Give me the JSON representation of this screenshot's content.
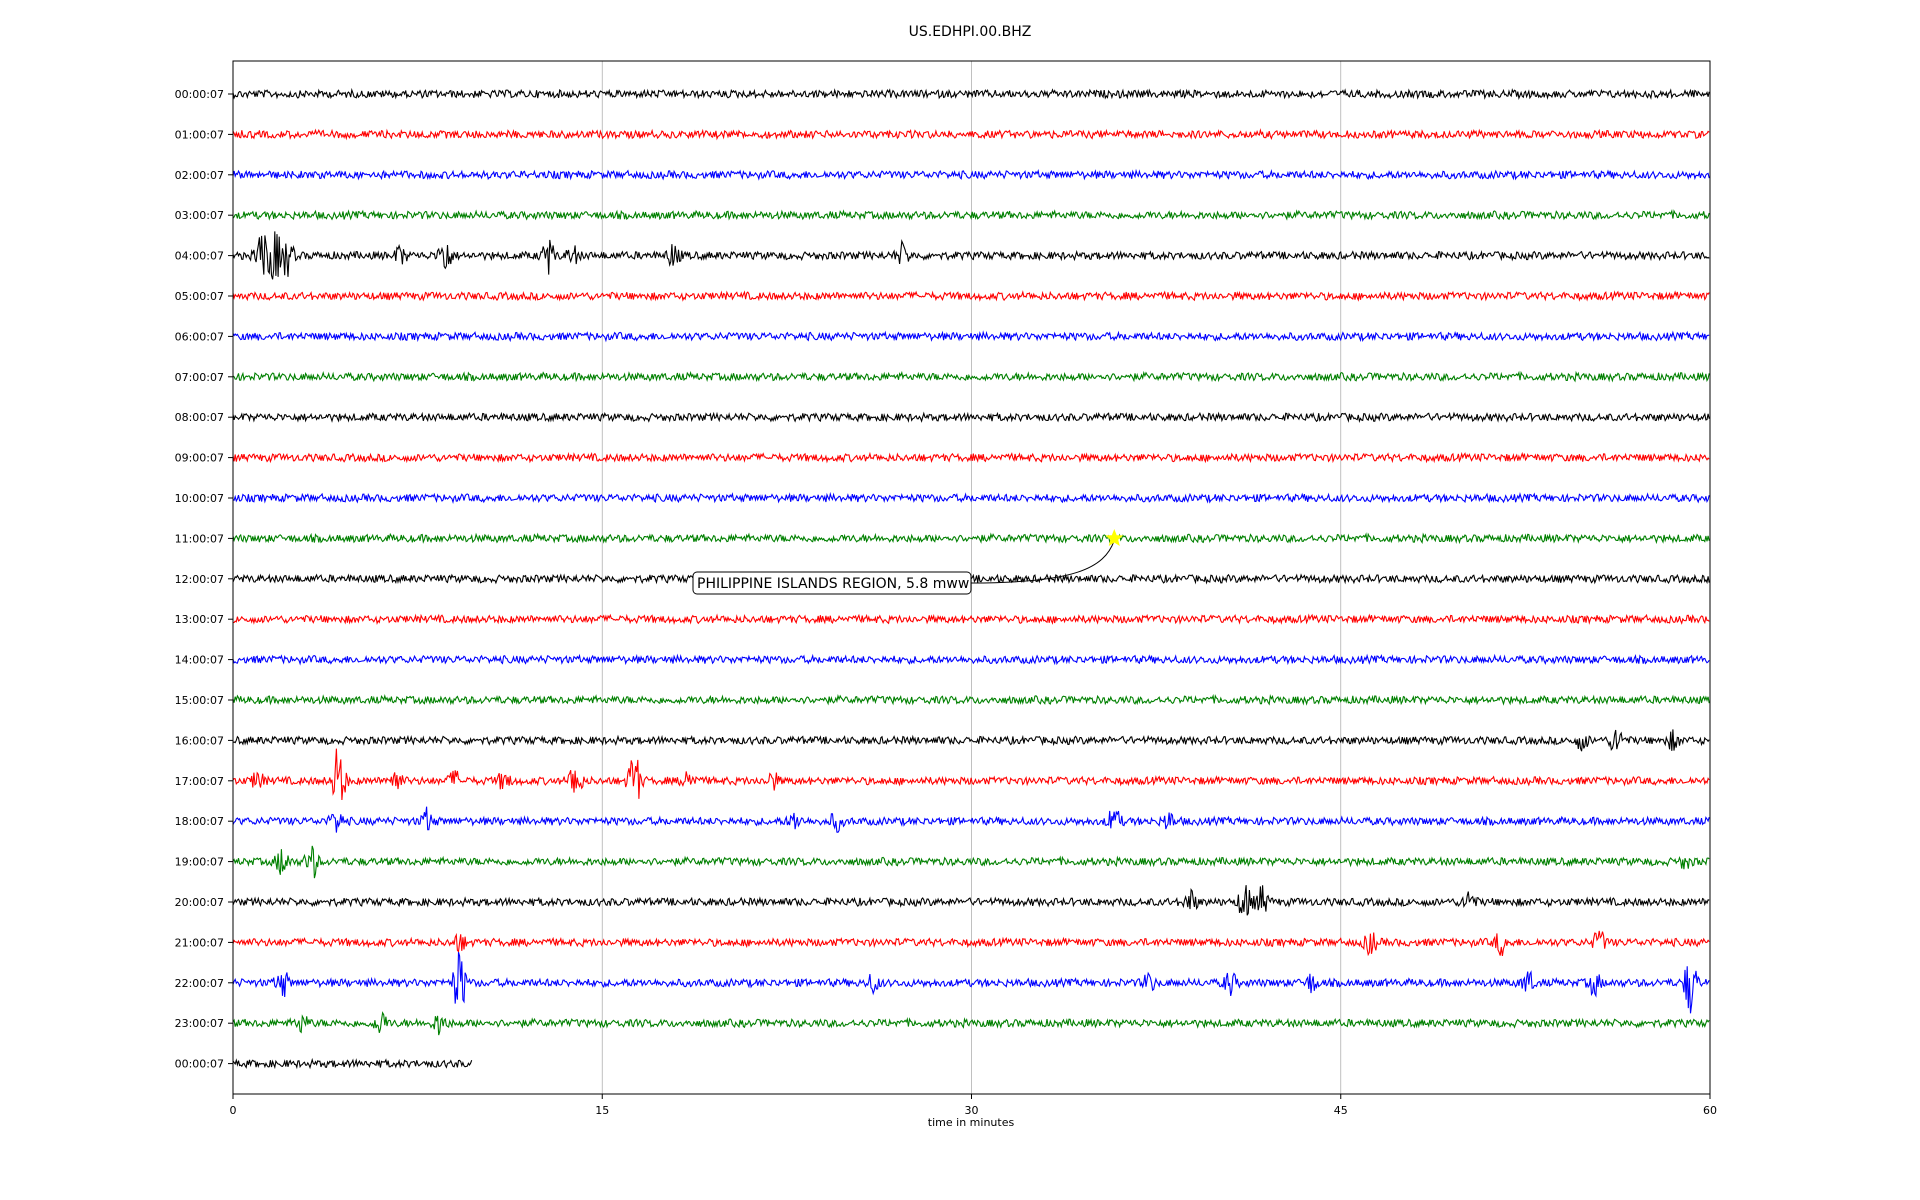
{
  "chart_data": {
    "type": "line",
    "title": "US.EDHPI.00.BHZ",
    "xlabel": "time in minutes",
    "ylabel": "",
    "xlim": [
      0,
      60
    ],
    "x_ticks": [
      0,
      15,
      30,
      45,
      60
    ],
    "grid": "vertical",
    "row_colors": [
      "#000000",
      "#ff0000",
      "#0000ff",
      "#008000"
    ],
    "rows": [
      {
        "label": "00:00:07",
        "end_minute": 60,
        "bursts": []
      },
      {
        "label": "01:00:07",
        "end_minute": 60,
        "bursts": []
      },
      {
        "label": "02:00:07",
        "end_minute": 60,
        "bursts": []
      },
      {
        "label": "03:00:07",
        "end_minute": 60,
        "bursts": []
      },
      {
        "label": "04:00:07",
        "end_minute": 60,
        "bursts": [
          {
            "minute": 1.2,
            "amplitude": 1.0
          },
          {
            "minute": 1.7,
            "amplitude": 0.9
          },
          {
            "minute": 2.2,
            "amplitude": 0.7
          },
          {
            "minute": 6.8,
            "amplitude": 0.3
          },
          {
            "minute": 8.6,
            "amplitude": 0.7
          },
          {
            "minute": 12.8,
            "amplitude": 0.6
          },
          {
            "minute": 13.8,
            "amplitude": 0.3
          },
          {
            "minute": 17.9,
            "amplitude": 0.4
          },
          {
            "minute": 27.2,
            "amplitude": 0.4
          }
        ]
      },
      {
        "label": "05:00:07",
        "end_minute": 60,
        "bursts": []
      },
      {
        "label": "06:00:07",
        "end_minute": 60,
        "bursts": []
      },
      {
        "label": "07:00:07",
        "end_minute": 60,
        "bursts": []
      },
      {
        "label": "08:00:07",
        "end_minute": 60,
        "bursts": []
      },
      {
        "label": "09:00:07",
        "end_minute": 60,
        "bursts": []
      },
      {
        "label": "10:00:07",
        "end_minute": 60,
        "bursts": []
      },
      {
        "label": "11:00:07",
        "end_minute": 60,
        "bursts": []
      },
      {
        "label": "12:00:07",
        "end_minute": 60,
        "bursts": []
      },
      {
        "label": "13:00:07",
        "end_minute": 60,
        "bursts": []
      },
      {
        "label": "14:00:07",
        "end_minute": 60,
        "bursts": []
      },
      {
        "label": "15:00:07",
        "end_minute": 60,
        "bursts": []
      },
      {
        "label": "16:00:07",
        "end_minute": 60,
        "bursts": [
          {
            "minute": 54.8,
            "amplitude": 0.3
          },
          {
            "minute": 56.2,
            "amplitude": 0.5
          },
          {
            "minute": 58.5,
            "amplitude": 0.3
          }
        ]
      },
      {
        "label": "17:00:07",
        "end_minute": 60,
        "bursts": [
          {
            "minute": 1.0,
            "amplitude": 0.3
          },
          {
            "minute": 4.3,
            "amplitude": 1.3
          },
          {
            "minute": 6.6,
            "amplitude": 0.4
          },
          {
            "minute": 9.0,
            "amplitude": 0.3
          },
          {
            "minute": 11.0,
            "amplitude": 0.3
          },
          {
            "minute": 13.9,
            "amplitude": 0.7
          },
          {
            "minute": 16.3,
            "amplitude": 1.1
          },
          {
            "minute": 18.5,
            "amplitude": 0.4
          },
          {
            "minute": 21.9,
            "amplitude": 0.3
          }
        ]
      },
      {
        "label": "18:00:07",
        "end_minute": 60,
        "bursts": [
          {
            "minute": 4.2,
            "amplitude": 0.4
          },
          {
            "minute": 7.9,
            "amplitude": 0.4
          },
          {
            "minute": 22.8,
            "amplitude": 0.3
          },
          {
            "minute": 24.5,
            "amplitude": 0.3
          },
          {
            "minute": 35.8,
            "amplitude": 0.5
          },
          {
            "minute": 38.0,
            "amplitude": 0.3
          }
        ]
      },
      {
        "label": "19:00:07",
        "end_minute": 60,
        "bursts": [
          {
            "minute": 2.0,
            "amplitude": 0.5
          },
          {
            "minute": 3.2,
            "amplitude": 0.6
          },
          {
            "minute": 59.0,
            "amplitude": 0.2
          }
        ]
      },
      {
        "label": "20:00:07",
        "end_minute": 60,
        "bursts": [
          {
            "minute": 38.9,
            "amplitude": 0.4
          },
          {
            "minute": 41.1,
            "amplitude": 0.7
          },
          {
            "minute": 41.8,
            "amplitude": 0.5
          },
          {
            "minute": 50.2,
            "amplitude": 0.4
          }
        ]
      },
      {
        "label": "21:00:07",
        "end_minute": 60,
        "bursts": [
          {
            "minute": 9.2,
            "amplitude": 0.3
          },
          {
            "minute": 46.2,
            "amplitude": 0.4
          },
          {
            "minute": 51.5,
            "amplitude": 0.4
          },
          {
            "minute": 55.5,
            "amplitude": 0.4
          }
        ]
      },
      {
        "label": "22:00:07",
        "end_minute": 60,
        "bursts": [
          {
            "minute": 2.0,
            "amplitude": 0.5
          },
          {
            "minute": 9.2,
            "amplitude": 1.2
          },
          {
            "minute": 26.0,
            "amplitude": 0.3
          },
          {
            "minute": 37.2,
            "amplitude": 0.3
          },
          {
            "minute": 40.5,
            "amplitude": 0.4
          },
          {
            "minute": 43.8,
            "amplitude": 0.3
          },
          {
            "minute": 52.6,
            "amplitude": 0.4
          },
          {
            "minute": 55.3,
            "amplitude": 0.4
          },
          {
            "minute": 59.2,
            "amplitude": 1.1
          }
        ]
      },
      {
        "label": "23:00:07",
        "end_minute": 60,
        "bursts": [
          {
            "minute": 2.8,
            "amplitude": 0.3
          },
          {
            "minute": 6.0,
            "amplitude": 0.4
          },
          {
            "minute": 8.4,
            "amplitude": 0.4
          }
        ]
      },
      {
        "label": "00:00:07",
        "end_minute": 9.7,
        "bursts": []
      }
    ],
    "annotations": [
      {
        "text": "PHILIPPINE ISLANDS REGION, 5.8 mww",
        "row_index": 11,
        "minute": 35.8,
        "marker": "star",
        "marker_color": "#ffff00"
      }
    ]
  }
}
